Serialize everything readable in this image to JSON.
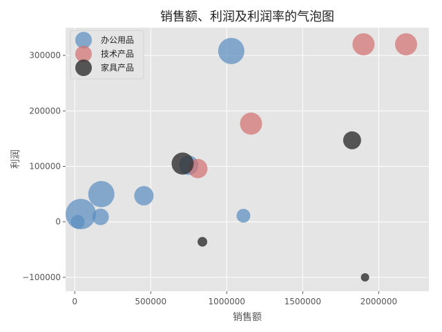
{
  "chart_data": {
    "type": "scatter",
    "title": "销售额、利润及利润率的气泡图",
    "xlabel": "销售额",
    "ylabel": "利润",
    "xlim": [
      -60000,
      2330000
    ],
    "ylim": [
      -125000,
      350000
    ],
    "xticks": [
      0,
      500000,
      1000000,
      1500000,
      2000000
    ],
    "xtick_labels": [
      "0",
      "500000",
      "1000000",
      "1500000",
      "2000000"
    ],
    "yticks": [
      -100000,
      0,
      100000,
      200000,
      300000
    ],
    "ytick_labels": [
      "−100000",
      "0",
      "100000",
      "200000",
      "300000"
    ],
    "grid": true,
    "legend_position": "top-left",
    "background": "#e5e5e5",
    "series": [
      {
        "name": "办公用品",
        "color": "#5b8fc1",
        "points": [
          {
            "x": 20000,
            "y": 0,
            "r": 10
          },
          {
            "x": 40000,
            "y": 14000,
            "r": 22
          },
          {
            "x": 170000,
            "y": 9000,
            "r": 12
          },
          {
            "x": 175000,
            "y": 50000,
            "r": 19
          },
          {
            "x": 455000,
            "y": 47000,
            "r": 14
          },
          {
            "x": 750000,
            "y": 102000,
            "r": 14
          },
          {
            "x": 1030000,
            "y": 308000,
            "r": 19
          },
          {
            "x": 1110000,
            "y": 11000,
            "r": 10
          }
        ]
      },
      {
        "name": "技术产品",
        "color": "#d17170",
        "points": [
          {
            "x": 810000,
            "y": 96000,
            "r": 14
          },
          {
            "x": 1160000,
            "y": 177000,
            "r": 16
          },
          {
            "x": 1900000,
            "y": 320000,
            "r": 16
          },
          {
            "x": 2180000,
            "y": 320000,
            "r": 16
          }
        ]
      },
      {
        "name": "家具产品",
        "color": "#333333",
        "points": [
          {
            "x": 710000,
            "y": 105000,
            "r": 16
          },
          {
            "x": 840000,
            "y": -36000,
            "r": 7
          },
          {
            "x": 1825000,
            "y": 147000,
            "r": 13
          },
          {
            "x": 1910000,
            "y": -100000,
            "r": 6
          }
        ]
      }
    ]
  }
}
